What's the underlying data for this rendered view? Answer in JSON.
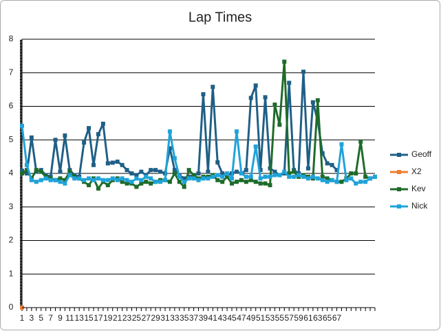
{
  "chart_data": {
    "type": "line",
    "title": "Lap Times",
    "categories": [
      1,
      2,
      3,
      4,
      5,
      6,
      7,
      8,
      9,
      10,
      11,
      12,
      13,
      14,
      15,
      16,
      17,
      18,
      19,
      20,
      21,
      22,
      23,
      24,
      25,
      26,
      27,
      28,
      29,
      30,
      31,
      32,
      33,
      34,
      35,
      36,
      37,
      38,
      39,
      40,
      41,
      42,
      43,
      44,
      45,
      46,
      47,
      48,
      49,
      50,
      51,
      52,
      53,
      54,
      55,
      56,
      57,
      58,
      59,
      60,
      61,
      62,
      63,
      64,
      65,
      66,
      67,
      null,
      null,
      null,
      null,
      null,
      null,
      null,
      null
    ],
    "label_interval": 2,
    "ylim": [
      0,
      8
    ],
    "yticks": [
      0,
      1,
      2,
      3,
      4,
      5,
      6,
      7,
      8
    ],
    "grid": true,
    "legend": "right",
    "series": [
      {
        "name": "Geoff",
        "color": "#1f5f86",
        "values": [
          4.08,
          4.0,
          5.07,
          4.05,
          4.1,
          3.95,
          3.9,
          5.0,
          4.05,
          5.13,
          4.1,
          3.95,
          3.9,
          4.92,
          5.35,
          4.25,
          5.17,
          5.48,
          4.3,
          4.32,
          4.35,
          4.25,
          4.1,
          4.0,
          3.95,
          4.05,
          3.95,
          4.1,
          4.1,
          4.05,
          4.0,
          4.75,
          4.1,
          3.95,
          3.85,
          3.9,
          3.95,
          4.0,
          6.36,
          4.05,
          6.58,
          4.33,
          4.0,
          3.95,
          4.0,
          4.05,
          4.0,
          4.1,
          6.25,
          6.62,
          4.1,
          6.27,
          4.15,
          4.05,
          3.95,
          4.0,
          6.7,
          4.1,
          4.0,
          7.03,
          4.15,
          6.12,
          5.57,
          4.6,
          4.3,
          4.25,
          4.1,
          null,
          null,
          null,
          null,
          null,
          null,
          null,
          null
        ]
      },
      {
        "name": "X2",
        "color": "#ed7d31",
        "values": [
          0,
          null,
          null,
          null,
          null,
          null,
          null,
          null,
          null,
          null,
          null,
          null,
          null,
          null,
          null,
          null,
          null,
          null,
          null,
          null,
          null,
          null,
          null,
          null,
          null,
          null,
          null,
          null,
          null,
          null,
          null,
          null,
          null,
          null,
          null,
          null,
          null,
          null,
          null,
          null,
          null,
          null,
          null,
          null,
          null,
          null,
          null,
          null,
          null,
          null,
          null,
          null,
          null,
          null,
          null,
          null,
          null,
          null,
          null,
          null,
          null,
          null,
          null,
          null,
          null,
          null,
          null,
          null,
          null,
          null,
          null,
          null,
          null,
          null,
          null
        ]
      },
      {
        "name": "Kev",
        "color": "#1e6b2a",
        "values": [
          4.0,
          4.1,
          3.85,
          4.1,
          4.05,
          3.9,
          3.85,
          3.8,
          3.85,
          3.8,
          4.05,
          3.9,
          3.85,
          3.75,
          3.65,
          3.85,
          3.55,
          3.75,
          3.65,
          3.8,
          3.85,
          3.75,
          3.7,
          3.7,
          3.6,
          3.7,
          3.75,
          3.7,
          3.75,
          3.8,
          3.8,
          3.75,
          4.0,
          3.75,
          3.6,
          4.1,
          3.95,
          3.85,
          3.9,
          3.9,
          3.95,
          3.8,
          3.75,
          3.9,
          3.7,
          3.75,
          3.8,
          3.75,
          3.8,
          3.75,
          3.7,
          3.7,
          3.65,
          6.05,
          5.45,
          7.33,
          4.0,
          4.05,
          3.9,
          3.95,
          3.9,
          3.85,
          6.18,
          3.9,
          3.85,
          3.8,
          3.75,
          3.75,
          3.85,
          4.0,
          4.0,
          4.95,
          3.9,
          3.85,
          3.9
        ]
      },
      {
        "name": "Nick",
        "color": "#1fa3d9",
        "values": [
          5.42,
          4.25,
          3.8,
          3.75,
          3.8,
          3.85,
          3.8,
          3.8,
          3.75,
          3.7,
          3.95,
          3.85,
          3.85,
          3.8,
          3.85,
          3.8,
          3.85,
          3.8,
          3.8,
          3.85,
          3.8,
          3.85,
          3.8,
          3.75,
          3.85,
          3.8,
          3.9,
          3.85,
          3.75,
          3.75,
          3.8,
          5.25,
          4.45,
          3.9,
          3.75,
          3.85,
          3.85,
          3.8,
          3.85,
          3.85,
          3.9,
          3.95,
          3.9,
          4.0,
          3.85,
          5.25,
          4.0,
          3.9,
          3.9,
          4.8,
          3.85,
          3.9,
          3.9,
          3.95,
          3.95,
          4.05,
          3.9,
          3.9,
          3.95,
          3.9,
          3.85,
          3.9,
          3.85,
          3.8,
          3.75,
          3.8,
          3.75,
          4.87,
          3.8,
          3.85,
          3.7,
          3.75,
          3.75,
          3.85,
          3.9
        ]
      }
    ]
  }
}
